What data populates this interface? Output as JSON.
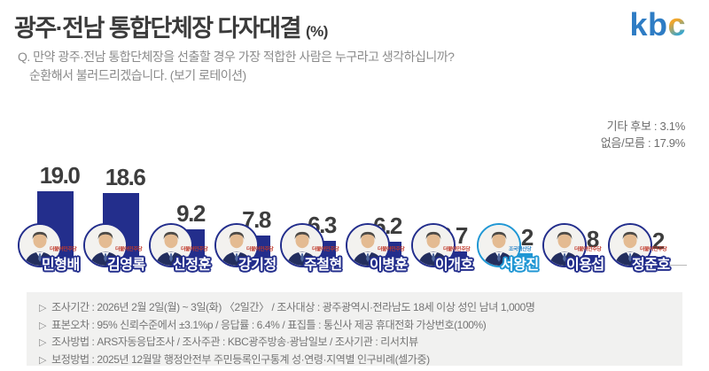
{
  "header": {
    "title": "광주·전남 통합단체장 다자대결",
    "unit": "(%)",
    "logo_letters": [
      "k",
      "b",
      "c"
    ],
    "logo_colors": {
      "kb": "#2e7cc4",
      "c_top": "#f1a62b",
      "c_bottom": "#38a6cf"
    }
  },
  "question": {
    "line1": "Q. 만약 광주·전남 통합단체장을 선출할 경우 가장 적합한 사람은 누구라고 생각하십니까?",
    "line2": "순환해서 불러드리겠습니다. (보기 로테이션)"
  },
  "side_info": {
    "others": "기타 후보 : 3.1%",
    "none_dontknow": "없음/모름 : 17.9%"
  },
  "chart_data": {
    "type": "bar",
    "title": "광주·전남 통합단체장 다자대결 (%)",
    "unit": "%",
    "ylim": [
      0,
      20
    ],
    "categories": [
      "민형배",
      "김영록",
      "신정훈",
      "강기정",
      "주철현",
      "이병훈",
      "이개호",
      "서왕진",
      "이용섭",
      "정준호"
    ],
    "values": [
      19.0,
      18.6,
      9.2,
      7.8,
      6.3,
      6.2,
      3.7,
      3.2,
      2.8,
      2.2
    ],
    "parties": [
      "더불어민주당",
      "더불어민주당",
      "더불어민주당",
      "더불어민주당",
      "더불어민주당",
      "더불어민주당",
      "더불어민주당",
      "조국혁신당",
      "더불어민주당",
      "더불어민주당"
    ],
    "party_colors": [
      "#c0392b",
      "#c0392b",
      "#c0392b",
      "#c0392b",
      "#c0392b",
      "#c0392b",
      "#c0392b",
      "#2e86c8",
      "#c0392b",
      "#c0392b"
    ],
    "bar_colors": [
      "#232e8c",
      "#232e8c",
      "#232e8c",
      "#232e8c",
      "#232e8c",
      "#232e8c",
      "#232e8c",
      "#2097d4",
      "#232e8c",
      "#232e8c"
    ],
    "others_label": "기타 후보",
    "others_pct": 3.1,
    "none_label": "없음/모름",
    "none_pct": 17.9,
    "grid": false,
    "legend": false
  },
  "footer": {
    "marker": "▷",
    "lines": [
      "조사기간 : 2026년 2월 2일(월) ~ 3일(화) 〈2일간〉 / 조사대상 : 광주광역시·전라남도 18세 이상 성인 남녀 1,000명",
      "표본오차 : 95% 신뢰수준에서 ±3.1%p / 응답률 : 6.4% / 표집틀 : 통신사 제공 휴대전화 가상번호(100%)",
      "조사방법 : ARS자동응답조사 / 조사주관 : KBC광주방송·광남일보 / 조사기관 : 리서치뷰",
      "보정방법 : 2025년 12월말 행정안전부 주민등록인구통계 성·연령·지역별 인구비례(셀가중)"
    ]
  }
}
